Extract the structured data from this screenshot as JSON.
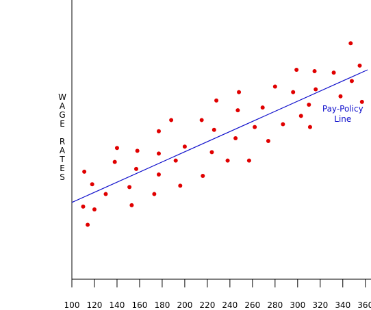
{
  "chart_data": {
    "type": "scatter",
    "title": "",
    "xlabel": "",
    "ylabel": "WAGE RATES",
    "ylabel_lines": [
      "W",
      "A",
      "G",
      "E",
      "",
      "R",
      "A",
      "T",
      "E",
      "S"
    ],
    "xlim": [
      100,
      365
    ],
    "ylim": [
      0,
      100
    ],
    "x_ticks": [
      100,
      120,
      140,
      160,
      180,
      200,
      220,
      240,
      260,
      280,
      300,
      320,
      340,
      360
    ],
    "grid": false,
    "point_color": "#e00000",
    "line_color": "#1010cc",
    "points": [
      {
        "x": 110,
        "y": 26
      },
      {
        "x": 111,
        "y": 38.5
      },
      {
        "x": 114,
        "y": 19.5
      },
      {
        "x": 118,
        "y": 34
      },
      {
        "x": 120,
        "y": 25
      },
      {
        "x": 130,
        "y": 30.5
      },
      {
        "x": 138,
        "y": 42
      },
      {
        "x": 140,
        "y": 47
      },
      {
        "x": 151,
        "y": 33
      },
      {
        "x": 153,
        "y": 26.5
      },
      {
        "x": 157,
        "y": 39.5
      },
      {
        "x": 158,
        "y": 46
      },
      {
        "x": 173,
        "y": 30.5
      },
      {
        "x": 177,
        "y": 37.5
      },
      {
        "x": 177,
        "y": 45
      },
      {
        "x": 177,
        "y": 53
      },
      {
        "x": 188,
        "y": 57
      },
      {
        "x": 192,
        "y": 42.5
      },
      {
        "x": 196,
        "y": 33.5
      },
      {
        "x": 200,
        "y": 47.5
      },
      {
        "x": 215,
        "y": 57
      },
      {
        "x": 216,
        "y": 37
      },
      {
        "x": 224,
        "y": 45.5
      },
      {
        "x": 226,
        "y": 53.5
      },
      {
        "x": 228,
        "y": 64
      },
      {
        "x": 238,
        "y": 42.5
      },
      {
        "x": 245,
        "y": 50.5
      },
      {
        "x": 247,
        "y": 60.5
      },
      {
        "x": 248,
        "y": 67
      },
      {
        "x": 257,
        "y": 42.5
      },
      {
        "x": 262,
        "y": 54.5
      },
      {
        "x": 269,
        "y": 61.5
      },
      {
        "x": 274,
        "y": 49.5
      },
      {
        "x": 280,
        "y": 69
      },
      {
        "x": 287,
        "y": 55.5
      },
      {
        "x": 296,
        "y": 67
      },
      {
        "x": 299,
        "y": 75
      },
      {
        "x": 303,
        "y": 58.5
      },
      {
        "x": 310,
        "y": 62.5
      },
      {
        "x": 311,
        "y": 54.5
      },
      {
        "x": 315,
        "y": 74.5
      },
      {
        "x": 316,
        "y": 68
      },
      {
        "x": 332,
        "y": 74
      },
      {
        "x": 338,
        "y": 65.5
      },
      {
        "x": 347,
        "y": 84.5
      },
      {
        "x": 348,
        "y": 71
      },
      {
        "x": 355,
        "y": 76.5
      },
      {
        "x": 357,
        "y": 63.5
      }
    ],
    "line": {
      "x1": 100,
      "y1": 27.5,
      "x2": 362,
      "y2": 75
    },
    "annotation": {
      "lines": [
        "Pay-Policy",
        "Line"
      ],
      "x": 340,
      "y": 60
    }
  }
}
